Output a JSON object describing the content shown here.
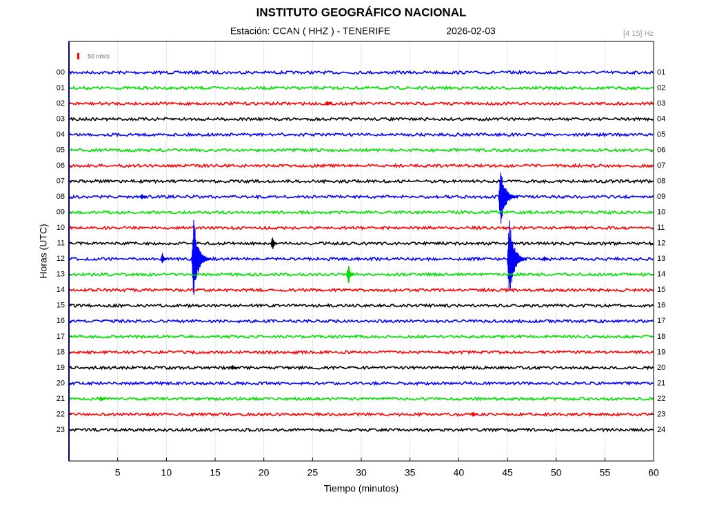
{
  "chart_data": {
    "type": "helicorder",
    "title": "INSTITUTO GEOGRÁFICO NACIONAL",
    "subtitle": "Estación:  CCAN ( HHZ ) - TENERIFE",
    "date": "2026-02-03",
    "filter": "[4 15] Hz",
    "scale_label": "50 nm/s",
    "scale_color": "#ff0000",
    "x_label": "Tiempo (minutos)",
    "y_label": "Horas (UTC)",
    "xlim": [
      0,
      60
    ],
    "xticks": [
      5,
      10,
      15,
      20,
      25,
      30,
      35,
      40,
      45,
      50,
      55,
      60
    ],
    "ylim": [
      25,
      -2
    ],
    "yticks": [
      {
        "value": 0,
        "label": "00"
      },
      {
        "value": 1,
        "label": "01"
      },
      {
        "value": 2,
        "label": "02"
      },
      {
        "value": 3,
        "label": "03"
      },
      {
        "value": 4,
        "label": "04"
      },
      {
        "value": 5,
        "label": "05"
      },
      {
        "value": 6,
        "label": "06"
      },
      {
        "value": 7,
        "label": "07"
      },
      {
        "value": 8,
        "label": "08"
      },
      {
        "value": 9,
        "label": "09"
      },
      {
        "value": 10,
        "label": "10"
      },
      {
        "value": 11,
        "label": "11"
      },
      {
        "value": 12,
        "label": "12"
      },
      {
        "value": 13,
        "label": "13"
      },
      {
        "value": 14,
        "label": "14"
      },
      {
        "value": 15,
        "label": "15"
      },
      {
        "value": 16,
        "label": "16"
      },
      {
        "value": 17,
        "label": "17"
      },
      {
        "value": 18,
        "label": "18"
      },
      {
        "value": 19,
        "label": "19"
      },
      {
        "value": 20,
        "label": "20"
      },
      {
        "value": 21,
        "label": "21"
      },
      {
        "value": 22,
        "label": "22"
      },
      {
        "value": 23,
        "label": "23"
      }
    ],
    "y2ticks": [
      {
        "value": 0,
        "label": "01"
      },
      {
        "value": 1,
        "label": "02"
      },
      {
        "value": 2,
        "label": "03"
      },
      {
        "value": 3,
        "label": "04"
      },
      {
        "value": 4,
        "label": "05"
      },
      {
        "value": 5,
        "label": "06"
      },
      {
        "value": 6,
        "label": "07"
      },
      {
        "value": 7,
        "label": "08"
      },
      {
        "value": 8,
        "label": "09"
      },
      {
        "value": 9,
        "label": "10"
      },
      {
        "value": 10,
        "label": "11"
      },
      {
        "value": 11,
        "label": "12"
      },
      {
        "value": 12,
        "label": "13"
      },
      {
        "value": 13,
        "label": "14"
      },
      {
        "value": 14,
        "label": "15"
      },
      {
        "value": 15,
        "label": "16"
      },
      {
        "value": 16,
        "label": "17"
      },
      {
        "value": 17,
        "label": "18"
      },
      {
        "value": 18,
        "label": "19"
      },
      {
        "value": 19,
        "label": "20"
      },
      {
        "value": 20,
        "label": "21"
      },
      {
        "value": 21,
        "label": "22"
      },
      {
        "value": 22,
        "label": "23"
      },
      {
        "value": 23,
        "label": "24"
      }
    ],
    "grid": true,
    "traces": [
      {
        "color": "#0000ff",
        "events": []
      },
      {
        "color": "#00e000",
        "events": []
      },
      {
        "color": "#ff0000",
        "events": [
          {
            "x": 26.5,
            "amp": 0.2
          }
        ]
      },
      {
        "color": "#000000",
        "events": []
      },
      {
        "color": "#0000ff",
        "events": []
      },
      {
        "color": "#00e000",
        "events": []
      },
      {
        "color": "#ff0000",
        "events": []
      },
      {
        "color": "#000000",
        "events": []
      },
      {
        "color": "#0000ff",
        "events": [
          {
            "x": 44.3,
            "amp": 2
          },
          {
            "x": 7.5,
            "amp": 0.2
          }
        ]
      },
      {
        "color": "#00e000",
        "events": []
      },
      {
        "color": "#ff0000",
        "events": []
      },
      {
        "color": "#000000",
        "events": [
          {
            "x": 20.9,
            "amp": 0.5
          }
        ]
      },
      {
        "color": "#0000ff",
        "events": [
          {
            "x": 9.6,
            "amp": 0.4
          },
          {
            "x": 12.8,
            "amp": 2.6
          },
          {
            "x": 45.2,
            "amp": 2.7
          },
          {
            "x": 48.8,
            "amp": 0.2
          }
        ]
      },
      {
        "color": "#00e000",
        "events": [
          {
            "x": 28.7,
            "amp": 0.7
          }
        ]
      },
      {
        "color": "#ff0000",
        "events": []
      },
      {
        "color": "#000000",
        "events": []
      },
      {
        "color": "#0000ff",
        "events": []
      },
      {
        "color": "#00e000",
        "events": []
      },
      {
        "color": "#ff0000",
        "events": []
      },
      {
        "color": "#000000",
        "events": [
          {
            "x": 16.8,
            "amp": 0.2
          }
        ]
      },
      {
        "color": "#0000ff",
        "events": []
      },
      {
        "color": "#00e000",
        "events": [
          {
            "x": 3.3,
            "amp": 0.2
          }
        ]
      },
      {
        "color": "#ff0000",
        "events": [
          {
            "x": 41.5,
            "amp": 0.2
          }
        ]
      },
      {
        "color": "#000000",
        "events": []
      }
    ]
  }
}
